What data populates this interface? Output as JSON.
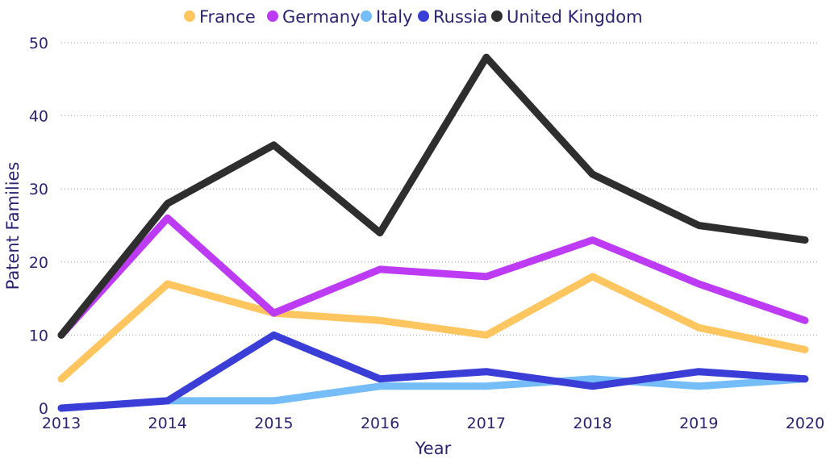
{
  "chart_data": {
    "type": "line",
    "title": "",
    "xlabel": "Year",
    "ylabel": "Patent Families",
    "x": [
      "2013",
      "2014",
      "2015",
      "2016",
      "2017",
      "2018",
      "2019",
      "2020"
    ],
    "ylim": [
      0,
      50
    ],
    "yticks": [
      0,
      10,
      20,
      30,
      40,
      50
    ],
    "grid": true,
    "legend_position": "top-center",
    "series": [
      {
        "name": "France",
        "color": "#FFC55E",
        "values": [
          4,
          17,
          13,
          12,
          10,
          18,
          11,
          8
        ]
      },
      {
        "name": "Germany",
        "color": "#BE3BF5",
        "values": [
          10,
          26,
          13,
          19,
          18,
          23,
          17,
          12
        ]
      },
      {
        "name": "Italy",
        "color": "#74BDF8",
        "values": [
          0,
          1,
          1,
          3,
          3,
          4,
          3,
          4
        ]
      },
      {
        "name": "Russia",
        "color": "#3A3ED6",
        "values": [
          0,
          1,
          10,
          4,
          5,
          3,
          5,
          4
        ]
      },
      {
        "name": "United Kingdom",
        "color": "#2E2E2E",
        "values": [
          10,
          28,
          36,
          24,
          48,
          32,
          25,
          23
        ]
      }
    ]
  }
}
